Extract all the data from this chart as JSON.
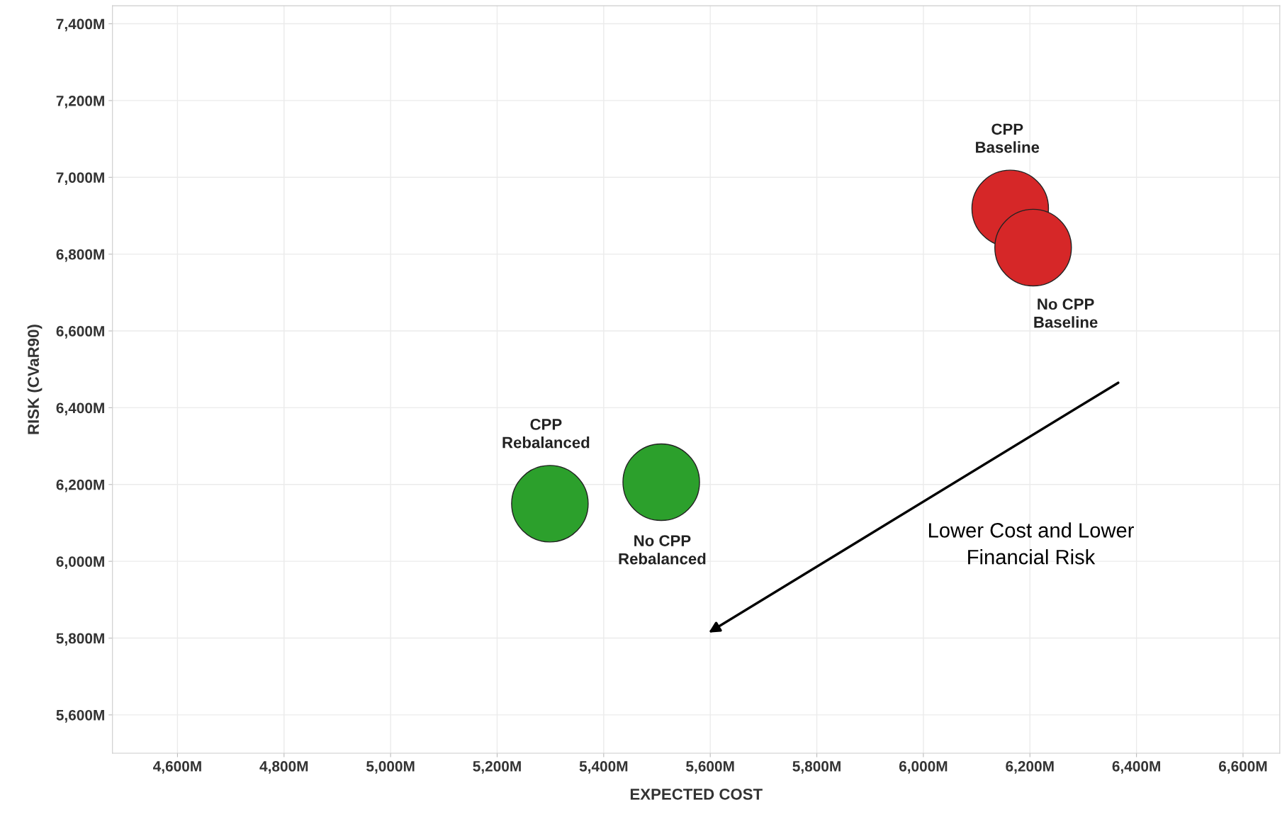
{
  "chart_data": {
    "type": "scatter",
    "xlabel": "EXPECTED COST",
    "ylabel": "RISK (CVaR90)",
    "series": [
      {
        "name": "CPP\nBaseline",
        "color": "#d62728",
        "x": [
          6163
        ],
        "values": [
          6919
        ]
      },
      {
        "name": "No CPP\nBaseline",
        "color": "#d62728",
        "x": [
          6206
        ],
        "values": [
          6817
        ]
      },
      {
        "name": "CPP\nRebalanced",
        "color": "#2ca02c",
        "x": [
          5299
        ],
        "values": [
          6150
        ]
      },
      {
        "name": "No CPP\nRebalanced",
        "color": "#2ca02c",
        "x": [
          5508
        ],
        "values": [
          6206
        ]
      }
    ],
    "xlim": [
      4478,
      6669
    ],
    "ylim": [
      5500,
      7447
    ],
    "xticks": [
      {
        "value": 4600,
        "label": "4,600M"
      },
      {
        "value": 4800,
        "label": "4,800M"
      },
      {
        "value": 5000,
        "label": "5,000M"
      },
      {
        "value": 5200,
        "label": "5,200M"
      },
      {
        "value": 5400,
        "label": "5,400M"
      },
      {
        "value": 5600,
        "label": "5,600M"
      },
      {
        "value": 5800,
        "label": "5,800M"
      },
      {
        "value": 6000,
        "label": "6,000M"
      },
      {
        "value": 6200,
        "label": "6,200M"
      },
      {
        "value": 6400,
        "label": "6,400M"
      },
      {
        "value": 6600,
        "label": "6,600M"
      }
    ],
    "yticks": [
      {
        "value": 5600,
        "label": "5,600M"
      },
      {
        "value": 5800,
        "label": "5,800M"
      },
      {
        "value": 6000,
        "label": "6,000M"
      },
      {
        "value": 6200,
        "label": "6,200M"
      },
      {
        "value": 6400,
        "label": "6,400M"
      },
      {
        "value": 6600,
        "label": "6,600M"
      },
      {
        "value": 6800,
        "label": "6,800M"
      },
      {
        "value": 7000,
        "label": "7,000M"
      },
      {
        "value": 7200,
        "label": "7,200M"
      },
      {
        "value": 7400,
        "label": "7,400M"
      }
    ],
    "grid": true,
    "marker": "circle",
    "annotations": [
      "Lower Cost and Lower\nFinancial Risk"
    ]
  }
}
